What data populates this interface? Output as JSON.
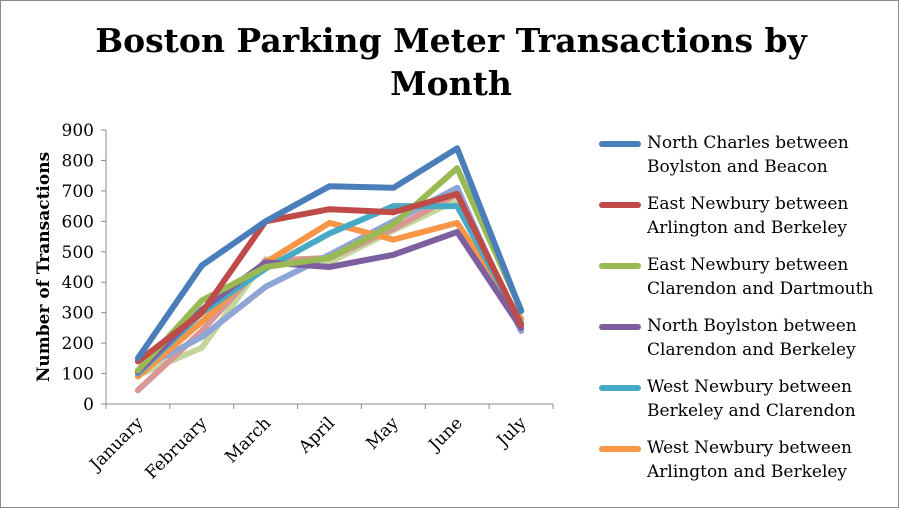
{
  "chart_data": {
    "type": "line",
    "title": "Boston Parking Meter Transactions by Month",
    "xlabel": "",
    "ylabel": "Number of Transactions",
    "ylim": [
      0,
      900
    ],
    "yticks": [
      0,
      100,
      200,
      300,
      400,
      500,
      600,
      700,
      800,
      900
    ],
    "grid": false,
    "legend": "right",
    "categories": [
      "January",
      "February",
      "March",
      "April",
      "May",
      "June",
      "July"
    ],
    "series": [
      {
        "name": "North Charles between Boylston and Beacon",
        "color": "#4a7ebb",
        "values": [
          150,
          455,
          600,
          715,
          710,
          840,
          305
        ]
      },
      {
        "name": "East Newbury between Arlington and Berkeley",
        "color": "#be4b48",
        "values": [
          140,
          300,
          600,
          640,
          630,
          690,
          260
        ]
      },
      {
        "name": "East Newbury between Clarendon and Dartmouth",
        "color": "#98b954",
        "values": [
          110,
          340,
          450,
          480,
          590,
          775,
          310
        ]
      },
      {
        "name": "North Boylston between Clarendon and Berkeley",
        "color": "#7d5fa0",
        "values": [
          105,
          310,
          465,
          450,
          490,
          565,
          250
        ]
      },
      {
        "name": "West Newbury between Berkeley and Clarendon",
        "color": "#46aac5",
        "values": [
          100,
          300,
          445,
          560,
          650,
          650,
          265
        ]
      },
      {
        "name": "West Newbury between Arlington and Berkeley",
        "color": "#f79646",
        "values": [
          90,
          270,
          465,
          595,
          540,
          595,
          280
        ]
      },
      {
        "name": "",
        "color": "#8ea5d5",
        "values": [
          110,
          220,
          385,
          490,
          600,
          710,
          240
        ]
      },
      {
        "name": "",
        "color": "#d99694",
        "values": [
          45,
          240,
          470,
          480,
          575,
          690,
          240
        ]
      },
      {
        "name": "",
        "color": "#c3d69b",
        "values": [
          95,
          185,
          475,
          465,
          570,
          670,
          265
        ]
      }
    ]
  }
}
